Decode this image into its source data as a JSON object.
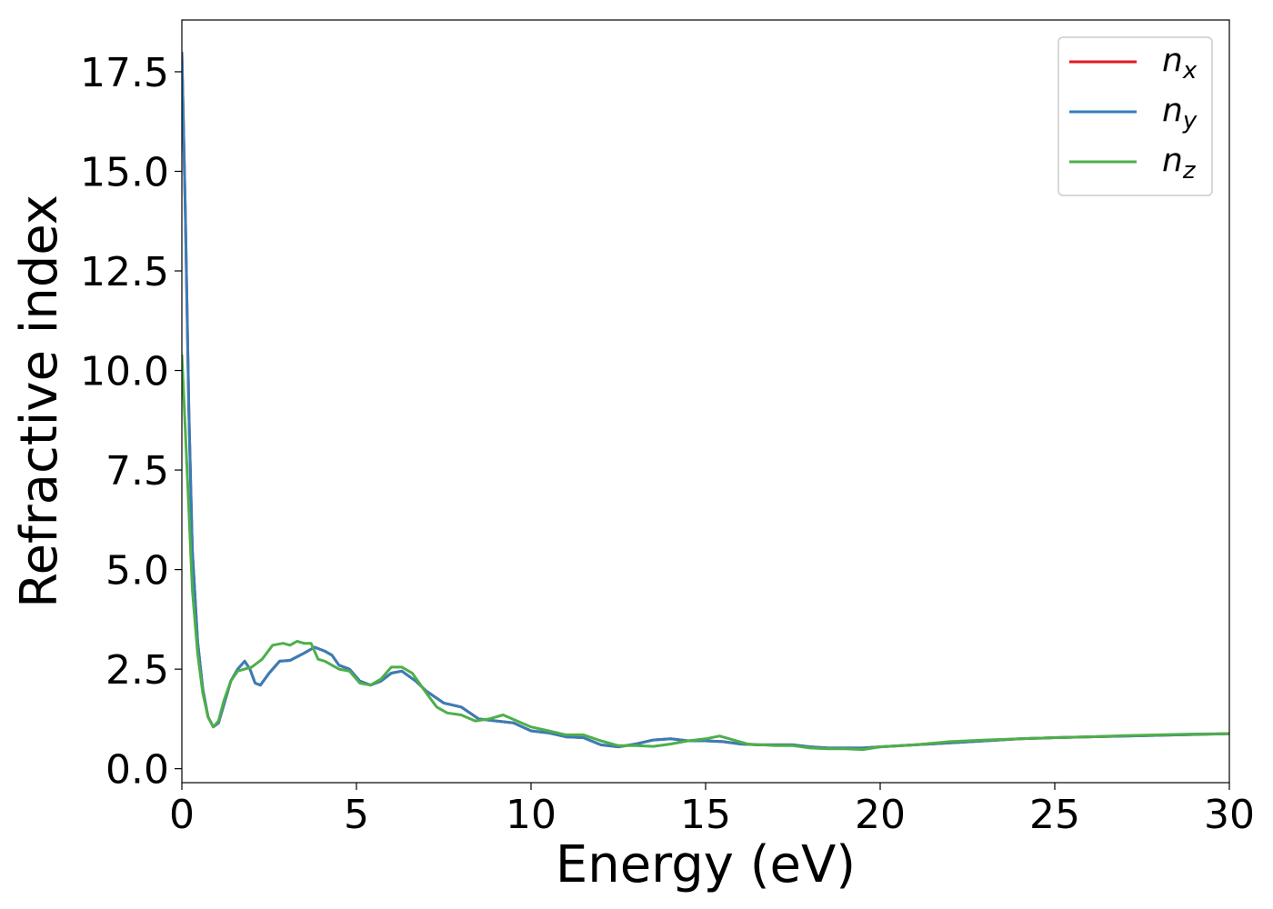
{
  "chart_data": {
    "type": "line",
    "xlabel": "Energy (eV)",
    "ylabel": "Refractive index",
    "xlim": [
      0,
      30
    ],
    "ylim": [
      -0.35,
      18.8
    ],
    "xticks": [
      0,
      5,
      10,
      15,
      20,
      25,
      30
    ],
    "xtick_labels": [
      "0",
      "5",
      "10",
      "15",
      "20",
      "25",
      "30"
    ],
    "yticks": [
      0,
      2.5,
      5,
      7.5,
      10,
      12.5,
      15,
      17.5
    ],
    "ytick_labels": [
      "0.0",
      "2.5",
      "5.0",
      "7.5",
      "10.0",
      "12.5",
      "15.0",
      "17.5"
    ],
    "grid": false,
    "legend": {
      "position": "top-right",
      "entries": [
        {
          "base": "n",
          "sub": "x",
          "color": "#e41a1c"
        },
        {
          "base": "n",
          "sub": "y",
          "color": "#377eb8"
        },
        {
          "base": "n",
          "sub": "z",
          "color": "#4daf4a"
        }
      ]
    },
    "series": [
      {
        "color": "#e41a1c",
        "points": [
          [
            0,
            18.0
          ],
          [
            0.1,
            14.0
          ],
          [
            0.2,
            9.0
          ],
          [
            0.3,
            5.5
          ],
          [
            0.45,
            3.2
          ],
          [
            0.6,
            2.0
          ],
          [
            0.75,
            1.3
          ],
          [
            0.9,
            1.05
          ],
          [
            1.05,
            1.15
          ],
          [
            1.2,
            1.6
          ],
          [
            1.4,
            2.2
          ],
          [
            1.6,
            2.5
          ],
          [
            1.8,
            2.7
          ],
          [
            1.95,
            2.5
          ],
          [
            2.1,
            2.15
          ],
          [
            2.25,
            2.1
          ],
          [
            2.5,
            2.4
          ],
          [
            2.8,
            2.7
          ],
          [
            3.1,
            2.72
          ],
          [
            3.5,
            2.9
          ],
          [
            3.8,
            3.05
          ],
          [
            4.1,
            2.95
          ],
          [
            4.3,
            2.85
          ],
          [
            4.5,
            2.6
          ],
          [
            4.8,
            2.5
          ],
          [
            5.1,
            2.2
          ],
          [
            5.4,
            2.1
          ],
          [
            5.7,
            2.2
          ],
          [
            6.0,
            2.4
          ],
          [
            6.3,
            2.45
          ],
          [
            6.7,
            2.2
          ],
          [
            7.0,
            1.95
          ],
          [
            7.5,
            1.65
          ],
          [
            8.0,
            1.55
          ],
          [
            8.5,
            1.25
          ],
          [
            9.0,
            1.2
          ],
          [
            9.5,
            1.15
          ],
          [
            10.0,
            0.95
          ],
          [
            10.5,
            0.9
          ],
          [
            11.0,
            0.8
          ],
          [
            11.5,
            0.78
          ],
          [
            12.0,
            0.6
          ],
          [
            12.5,
            0.55
          ],
          [
            13.0,
            0.62
          ],
          [
            13.5,
            0.72
          ],
          [
            14.0,
            0.75
          ],
          [
            14.5,
            0.7
          ],
          [
            15.0,
            0.7
          ],
          [
            15.5,
            0.68
          ],
          [
            16.0,
            0.62
          ],
          [
            16.5,
            0.6
          ],
          [
            17.0,
            0.6
          ],
          [
            17.5,
            0.6
          ],
          [
            18.0,
            0.55
          ],
          [
            18.5,
            0.52
          ],
          [
            19.0,
            0.52
          ],
          [
            19.5,
            0.52
          ],
          [
            20.0,
            0.55
          ],
          [
            21.0,
            0.6
          ],
          [
            22.0,
            0.65
          ],
          [
            23.0,
            0.7
          ],
          [
            24.0,
            0.75
          ],
          [
            25.0,
            0.78
          ],
          [
            26.0,
            0.8
          ],
          [
            27.0,
            0.82
          ],
          [
            28.0,
            0.84
          ],
          [
            29.0,
            0.86
          ],
          [
            30.0,
            0.88
          ]
        ]
      },
      {
        "color": "#377eb8",
        "points": [
          [
            0,
            18.0
          ],
          [
            0.1,
            14.0
          ],
          [
            0.2,
            9.0
          ],
          [
            0.3,
            5.5
          ],
          [
            0.45,
            3.2
          ],
          [
            0.6,
            2.0
          ],
          [
            0.75,
            1.3
          ],
          [
            0.9,
            1.05
          ],
          [
            1.05,
            1.15
          ],
          [
            1.2,
            1.6
          ],
          [
            1.4,
            2.2
          ],
          [
            1.6,
            2.5
          ],
          [
            1.8,
            2.7
          ],
          [
            1.95,
            2.5
          ],
          [
            2.1,
            2.15
          ],
          [
            2.25,
            2.1
          ],
          [
            2.5,
            2.4
          ],
          [
            2.8,
            2.7
          ],
          [
            3.1,
            2.72
          ],
          [
            3.5,
            2.9
          ],
          [
            3.8,
            3.05
          ],
          [
            4.1,
            2.95
          ],
          [
            4.3,
            2.85
          ],
          [
            4.5,
            2.6
          ],
          [
            4.8,
            2.5
          ],
          [
            5.1,
            2.2
          ],
          [
            5.4,
            2.1
          ],
          [
            5.7,
            2.2
          ],
          [
            6.0,
            2.4
          ],
          [
            6.3,
            2.45
          ],
          [
            6.7,
            2.2
          ],
          [
            7.0,
            1.95
          ],
          [
            7.5,
            1.65
          ],
          [
            8.0,
            1.55
          ],
          [
            8.5,
            1.25
          ],
          [
            9.0,
            1.2
          ],
          [
            9.5,
            1.15
          ],
          [
            10.0,
            0.95
          ],
          [
            10.5,
            0.9
          ],
          [
            11.0,
            0.8
          ],
          [
            11.5,
            0.78
          ],
          [
            12.0,
            0.6
          ],
          [
            12.5,
            0.55
          ],
          [
            13.0,
            0.62
          ],
          [
            13.5,
            0.72
          ],
          [
            14.0,
            0.75
          ],
          [
            14.5,
            0.7
          ],
          [
            15.0,
            0.7
          ],
          [
            15.5,
            0.68
          ],
          [
            16.0,
            0.62
          ],
          [
            16.5,
            0.6
          ],
          [
            17.0,
            0.6
          ],
          [
            17.5,
            0.6
          ],
          [
            18.0,
            0.55
          ],
          [
            18.5,
            0.52
          ],
          [
            19.0,
            0.52
          ],
          [
            19.5,
            0.52
          ],
          [
            20.0,
            0.55
          ],
          [
            21.0,
            0.6
          ],
          [
            22.0,
            0.65
          ],
          [
            23.0,
            0.7
          ],
          [
            24.0,
            0.75
          ],
          [
            25.0,
            0.78
          ],
          [
            26.0,
            0.8
          ],
          [
            27.0,
            0.82
          ],
          [
            28.0,
            0.84
          ],
          [
            29.0,
            0.86
          ],
          [
            30.0,
            0.88
          ]
        ]
      },
      {
        "color": "#4daf4a",
        "points": [
          [
            0,
            10.4
          ],
          [
            0.1,
            8.5
          ],
          [
            0.2,
            6.5
          ],
          [
            0.3,
            4.5
          ],
          [
            0.45,
            2.9
          ],
          [
            0.6,
            1.9
          ],
          [
            0.75,
            1.3
          ],
          [
            0.9,
            1.05
          ],
          [
            1.05,
            1.2
          ],
          [
            1.2,
            1.7
          ],
          [
            1.4,
            2.2
          ],
          [
            1.6,
            2.45
          ],
          [
            1.8,
            2.5
          ],
          [
            2.0,
            2.55
          ],
          [
            2.3,
            2.75
          ],
          [
            2.6,
            3.1
          ],
          [
            2.9,
            3.15
          ],
          [
            3.1,
            3.1
          ],
          [
            3.3,
            3.2
          ],
          [
            3.5,
            3.15
          ],
          [
            3.7,
            3.15
          ],
          [
            3.9,
            2.75
          ],
          [
            4.1,
            2.7
          ],
          [
            4.3,
            2.6
          ],
          [
            4.5,
            2.5
          ],
          [
            4.8,
            2.45
          ],
          [
            5.1,
            2.15
          ],
          [
            5.4,
            2.1
          ],
          [
            5.7,
            2.25
          ],
          [
            6.0,
            2.55
          ],
          [
            6.3,
            2.55
          ],
          [
            6.6,
            2.4
          ],
          [
            7.0,
            1.9
          ],
          [
            7.3,
            1.55
          ],
          [
            7.6,
            1.4
          ],
          [
            8.0,
            1.35
          ],
          [
            8.4,
            1.2
          ],
          [
            8.8,
            1.25
          ],
          [
            9.2,
            1.35
          ],
          [
            9.6,
            1.2
          ],
          [
            10.0,
            1.05
          ],
          [
            10.5,
            0.95
          ],
          [
            11.0,
            0.85
          ],
          [
            11.5,
            0.85
          ],
          [
            12.0,
            0.7
          ],
          [
            12.5,
            0.58
          ],
          [
            13.0,
            0.58
          ],
          [
            13.5,
            0.56
          ],
          [
            14.0,
            0.62
          ],
          [
            14.5,
            0.7
          ],
          [
            15.0,
            0.75
          ],
          [
            15.4,
            0.82
          ],
          [
            15.8,
            0.72
          ],
          [
            16.2,
            0.62
          ],
          [
            16.6,
            0.6
          ],
          [
            17.0,
            0.58
          ],
          [
            17.5,
            0.58
          ],
          [
            18.0,
            0.52
          ],
          [
            18.5,
            0.5
          ],
          [
            19.0,
            0.5
          ],
          [
            19.5,
            0.48
          ],
          [
            20.0,
            0.55
          ],
          [
            21.0,
            0.6
          ],
          [
            22.0,
            0.68
          ],
          [
            23.0,
            0.72
          ],
          [
            24.0,
            0.75
          ],
          [
            25.0,
            0.78
          ],
          [
            26.0,
            0.8
          ],
          [
            27.0,
            0.83
          ],
          [
            28.0,
            0.85
          ],
          [
            29.0,
            0.87
          ],
          [
            30.0,
            0.88
          ]
        ]
      }
    ]
  }
}
